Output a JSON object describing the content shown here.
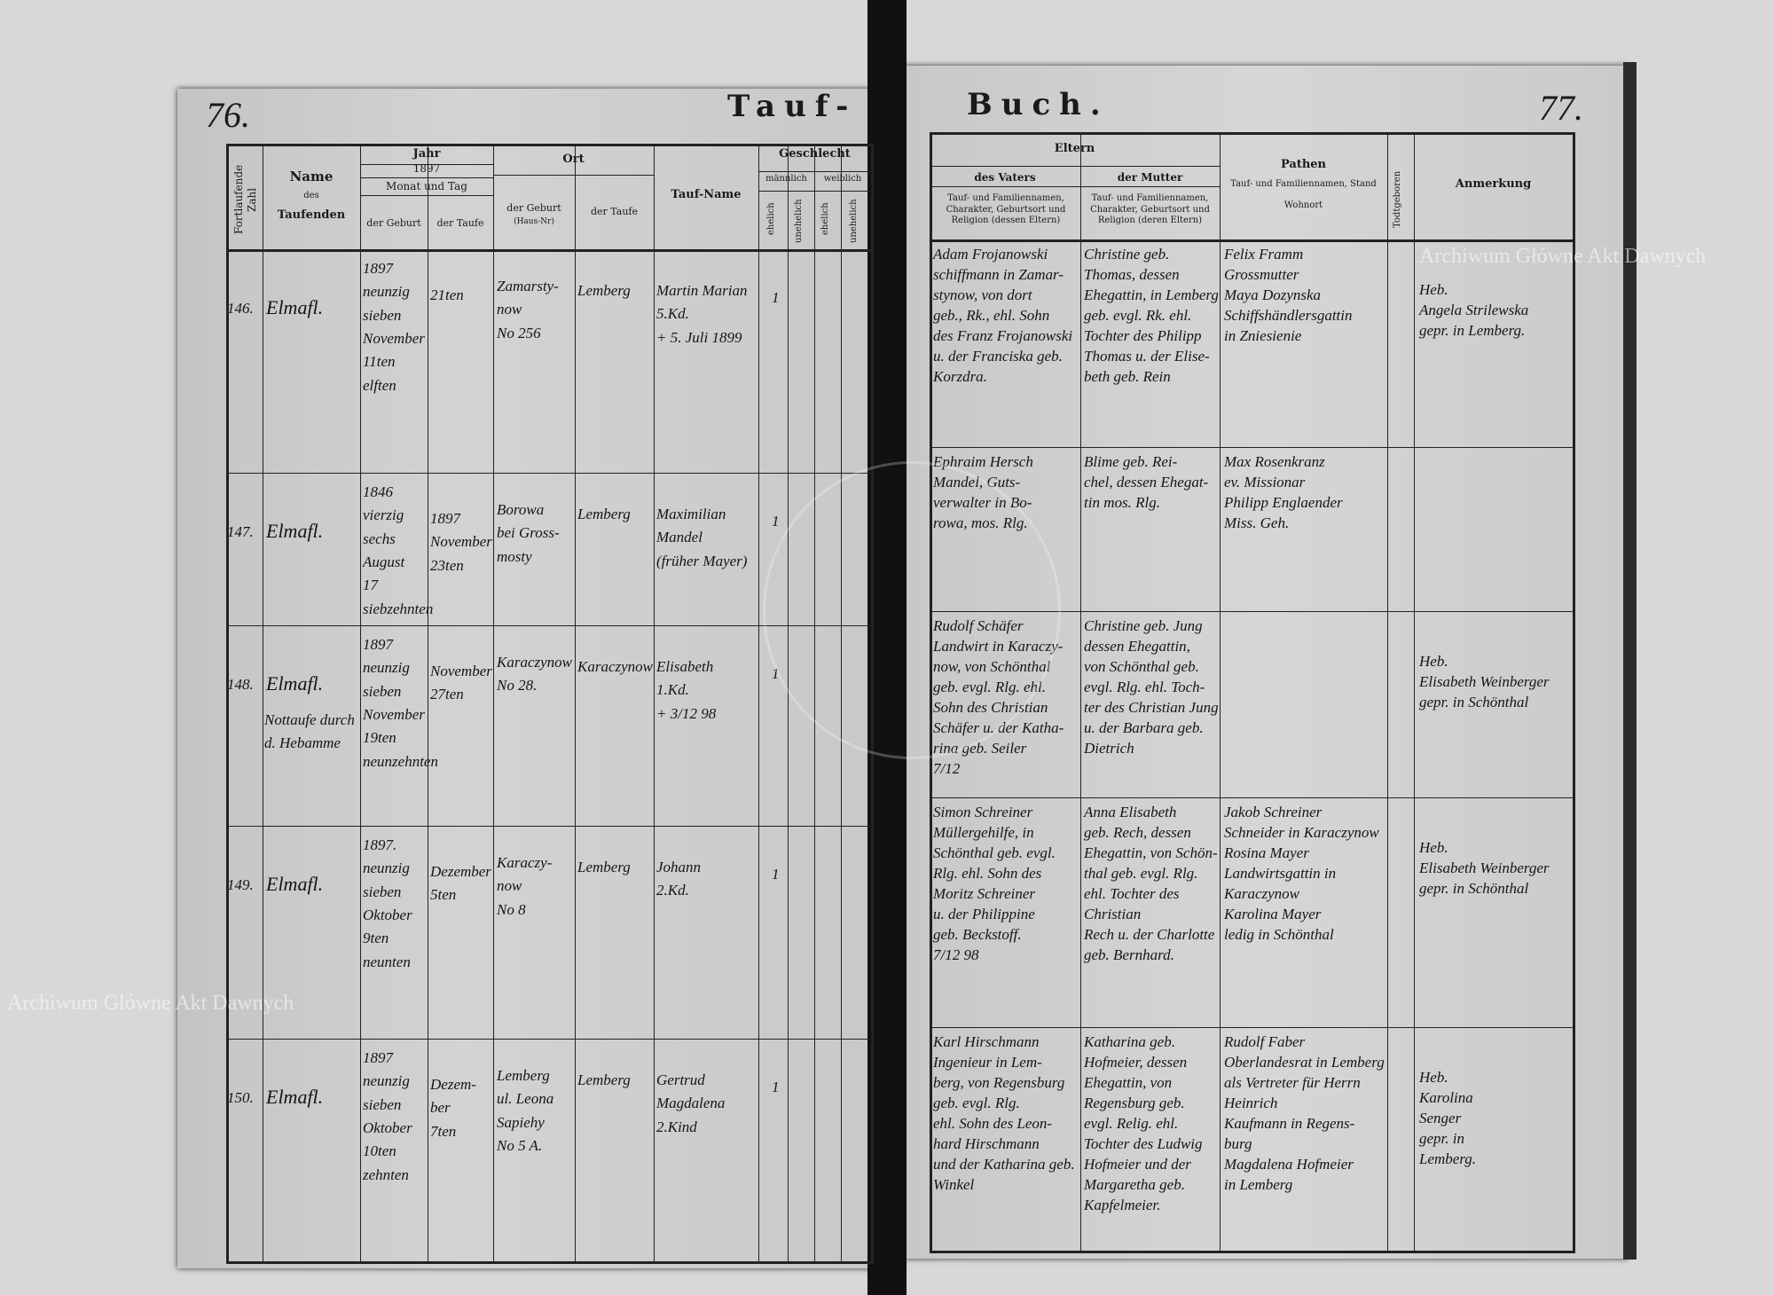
{
  "header": {
    "left_title": "Tauf-",
    "right_title": "Buch.",
    "left_page_number": "76.",
    "right_page_number": "77."
  },
  "left_columns": {
    "fortlaufende_zahl": "Fortlaufende Zahl",
    "name": "Name",
    "name_sub1": "des",
    "name_sub2": "Taufenden",
    "jahr": "Jahr",
    "jahr_value": "1897",
    "monat_tag": "Monat und Tag",
    "der_geburt": "der Geburt",
    "der_taufe": "der Taufe",
    "ort": "Ort",
    "ort_geburt": "der Geburt",
    "ort_geburt_sub": "(Haus-Nr)",
    "ort_taufe": "der Taufe",
    "tauf_name": "Tauf-Name",
    "geschlecht": "Geschlecht",
    "maennlich": "männlich",
    "weiblich": "weiblich",
    "ehelich": "ehelich",
    "unehelich": "unehelich"
  },
  "right_columns": {
    "eltern": "Eltern",
    "des_vaters": "des Vaters",
    "der_mutter": "der Mutter",
    "vater_desc": "Tauf- und Familiennamen, Charakter, Geburtsort und Religion (dessen Eltern)",
    "mutter_desc": "Tauf- und Familiennamen, Charakter, Geburtsort und Religion (deren Eltern)",
    "pathen": "Pathen",
    "pathen_desc": "Tauf- und Familiennamen, Stand",
    "wohnort": "Wohnort",
    "todtgeboren": "Todtgeboren",
    "anmerkung": "Anmerkung"
  },
  "entries": [
    {
      "number": "146.",
      "name": "Elmafl.",
      "birth": "1897\nneunzig sieben\nNovember\n11ten\nelften",
      "baptism": "21ten",
      "birth_place": "Zamarsty-\nnow\nNo 256",
      "baptism_place": "Lemberg",
      "baptism_name": "Martin Marian\n5.Kd.\n+ 5. Juli 1899",
      "sex": "1",
      "father": "Adam Frojanowski\nschiffmann in Zamar-\nstynow, von dort\ngeb., Rk., ehl. Sohn\ndes Franz Frojanowski\nu. der Franciska geb.\nKorzdra.",
      "mother": "Christine geb.\nThomas, dessen\nEhegattin, in Lemberg\ngeb. evgl. Rk. ehl.\nTochter des Philipp\nThomas u. der Elise-\nbeth geb. Rein",
      "godparents": "Felix Framm\nGrossmutter\nMaya Dozynska\nSchiffshändlersgattin\nin Zniesienie",
      "remark": "Heb.\nAngela Strilewska\ngepr. in Lemberg."
    },
    {
      "number": "147.",
      "name": "Elmafl.",
      "birth": "1846\nvierzig sechs\nAugust\n17\nsiebzehnten",
      "baptism": "1897\nNovember\n23ten",
      "birth_place": "Borowa\nbei Gross-\nmosty",
      "baptism_place": "Lemberg",
      "baptism_name": "Maximilian\nMandel\n(früher Mayer)",
      "sex": "1",
      "father": "Ephraim Hersch\nMandel, Guts-\nverwalter in Bo-\nrowa, mos. Rlg.",
      "mother": "Blime geb. Rei-\nchel, dessen Ehegat-\ntin mos. Rlg.",
      "godparents": "Max Rosenkranz\nev. Missionar\nPhilipp Englaender\nMiss. Geh.",
      "remark": ""
    },
    {
      "number": "148.",
      "name": "Elmafl.",
      "name_note": "Nottaufe durch\nd. Hebamme",
      "birth": "1897\nneunzig sieben\nNovember\n19ten\nneunzehnten",
      "baptism": "November\n27ten",
      "birth_place": "Karaczynow\nNo 28.",
      "baptism_place": "Karaczynow",
      "baptism_name": "Elisabeth\n1.Kd.\n+ 3/12 98",
      "sex": "1",
      "father": "Rudolf Schäfer\nLandwirt in Karaczy-\nnow, von Schönthal\ngeb. evgl. Rlg. ehl.\nSohn des Christian\nSchäfer u. der Katha-\nrina geb. Seiler\n7/12",
      "mother": "Christine geb. Jung\ndessen Ehegattin,\nvon Schönthal geb.\nevgl. Rlg. ehl. Toch-\nter des Christian Jung\nu. der Barbara geb.\nDietrich",
      "godparents": "",
      "remark": "Heb.\nElisabeth Weinberger\ngepr. in Schönthal"
    },
    {
      "number": "149.",
      "name": "Elmafl.",
      "birth": "1897.\nneunzig sieben\nOktober\n9ten\nneunten",
      "baptism": "Dezember\n5ten",
      "birth_place": "Karaczy-\nnow\nNo 8",
      "baptism_place": "Lemberg",
      "baptism_name": "Johann\n2.Kd.",
      "sex": "1",
      "father": "Simon Schreiner\nMüllergehilfe, in\nSchönthal geb. evgl.\nRlg. ehl. Sohn des\nMoritz Schreiner\nu. der Philippine\ngeb. Beckstoff.\n7/12 98",
      "mother": "Anna Elisabeth\ngeb. Rech, dessen\nEhegattin, von Schön-\nthal geb. evgl. Rlg.\nehl. Tochter des Christian\nRech u. der Charlotte\ngeb. Bernhard.",
      "godparents": "Jakob Schreiner\nSchneider in Karaczynow\nRosina Mayer\nLandwirtsgattin in Karaczynow\nKarolina Mayer\nledig in Schönthal",
      "remark": "Heb.\nElisabeth Weinberger\ngepr. in Schönthal"
    },
    {
      "number": "150.",
      "name": "Elmafl.",
      "birth": "1897\nneunzig sieben\nOktober\n10ten\nzehnten",
      "baptism": "Dezem-\nber\n7ten",
      "birth_place": "Lemberg\nul. Leona\nSapiehy\nNo 5 A.",
      "baptism_place": "Lemberg",
      "baptism_name": "Gertrud\nMagdalena\n2.Kind",
      "sex": "1",
      "father": "Karl Hirschmann\nIngenieur in Lem-\nberg, von Regensburg\ngeb. evgl. Rlg.\nehl. Sohn des Leon-\nhard Hirschmann\nund der Katharina geb.\nWinkel",
      "mother": "Katharina geb.\nHofmeier, dessen\nEhegattin, von\nRegensburg geb.\nevgl. Relig. ehl.\nTochter des Ludwig\nHofmeier und der\nMargaretha geb.\nKapfelmeier.",
      "godparents": "Rudolf Faber\nOberlandesrat in Lemberg\nals Vertreter für Herrn\nHeinrich\nKaufmann in Regens-\nburg\nMagdalena Hofmeier\nin Lemberg",
      "remark": "Heb.\nKarolina\nSenger\ngepr. in\nLemberg."
    }
  ],
  "watermark": {
    "text": "Archiwum Główne Akt Dawnych"
  },
  "stamp": {
    "text": "ARCHIWUM GŁÓWNE AKT DAWNYCH"
  }
}
